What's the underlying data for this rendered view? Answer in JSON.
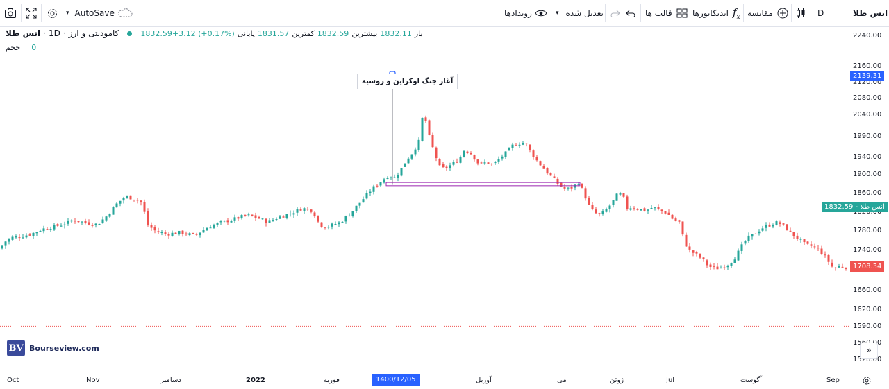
{
  "toolbar": {
    "autosave": "AutoSave",
    "events": "رویدادها",
    "adjusted": "تعدیل شده",
    "templates": "قالب ها",
    "indicators": "اندیکاتورها",
    "compare": "مقایسه",
    "interval": "D",
    "symbol": "انس طلا"
  },
  "legend": {
    "title": "انس طلا",
    "interval": "1D",
    "category": "کامودیتی و ارز",
    "open_label": "باز",
    "open": "1832.11",
    "high_label": "بیشترین",
    "high": "1832.59",
    "low_label": "کمترین",
    "low": "1831.57",
    "close_label": "پایانی",
    "close": "1832.59",
    "change": "+3.12 (+0.17%)",
    "volume_label": "حجم",
    "volume": "0"
  },
  "annotation": {
    "text": "آغاز جنگ اوکراین و روسیه"
  },
  "price_tags": {
    "marker": "2139.31",
    "current_label": "انس طلا",
    "current": "1832.59",
    "last": "1708.34"
  },
  "x_highlight": "1400/12/05",
  "logo": {
    "text": "Bourseview.com",
    "mark": "BV"
  },
  "colors": {
    "up": "#26a69a",
    "down": "#ef5350",
    "accent": "#2962ff",
    "rect": "#9c27b0"
  },
  "chart_data": {
    "type": "candlestick",
    "title": "انس طلا",
    "y_ticks": [
      "2240.00",
      "2160.00",
      "2120.00",
      "2080.00",
      "2040.00",
      "1990.00",
      "1940.00",
      "1900.00",
      "1860.00",
      "1820.00",
      "1780.00",
      "1740.00",
      "1700.00",
      "1660.00",
      "1620.00",
      "1590.00",
      "1560.00",
      "1528.00"
    ],
    "x_ticks": [
      "Oct",
      "Nov",
      "دسامبر",
      "2022",
      "فوریه",
      "آوریل",
      "می",
      "ژوئن",
      "Jul",
      "آگوست",
      "Sep"
    ],
    "ylim": [
      1528,
      2250
    ],
    "path": [
      [
        0,
        1745
      ],
      [
        8,
        1760
      ],
      [
        18,
        1768
      ],
      [
        30,
        1770
      ],
      [
        45,
        1775
      ],
      [
        60,
        1785
      ],
      [
        75,
        1790
      ],
      [
        90,
        1795
      ],
      [
        105,
        1805
      ],
      [
        120,
        1800
      ],
      [
        140,
        1795
      ],
      [
        155,
        1815
      ],
      [
        165,
        1835
      ],
      [
        180,
        1855
      ],
      [
        195,
        1850
      ],
      [
        205,
        1840
      ],
      [
        212,
        1795
      ],
      [
        225,
        1780
      ],
      [
        240,
        1775
      ],
      [
        260,
        1778
      ],
      [
        280,
        1772
      ],
      [
        300,
        1790
      ],
      [
        320,
        1800
      ],
      [
        340,
        1808
      ],
      [
        355,
        1815
      ],
      [
        370,
        1810
      ],
      [
        385,
        1800
      ],
      [
        400,
        1810
      ],
      [
        420,
        1820
      ],
      [
        435,
        1830
      ],
      [
        450,
        1825
      ],
      [
        460,
        1795
      ],
      [
        470,
        1790
      ],
      [
        490,
        1800
      ],
      [
        505,
        1820
      ],
      [
        520,
        1845
      ],
      [
        535,
        1870
      ],
      [
        550,
        1890
      ],
      [
        560,
        1900
      ],
      [
        568,
        1895
      ],
      [
        575,
        1908
      ],
      [
        585,
        1935
      ],
      [
        595,
        1955
      ],
      [
        603,
        1980
      ],
      [
        610,
        2055
      ],
      [
        615,
        2010
      ],
      [
        620,
        1980
      ],
      [
        627,
        1945
      ],
      [
        633,
        1920
      ],
      [
        640,
        1915
      ],
      [
        650,
        1925
      ],
      [
        660,
        1935
      ],
      [
        668,
        1958
      ],
      [
        676,
        1955
      ],
      [
        683,
        1940
      ],
      [
        690,
        1925
      ],
      [
        700,
        1930
      ],
      [
        710,
        1925
      ],
      [
        720,
        1940
      ],
      [
        730,
        1955
      ],
      [
        738,
        1970
      ],
      [
        748,
        1975
      ],
      [
        756,
        1978
      ],
      [
        762,
        1960
      ],
      [
        770,
        1940
      ],
      [
        778,
        1925
      ],
      [
        786,
        1910
      ],
      [
        795,
        1895
      ],
      [
        805,
        1880
      ],
      [
        815,
        1870
      ],
      [
        825,
        1875
      ],
      [
        833,
        1885
      ],
      [
        840,
        1865
      ],
      [
        848,
        1835
      ],
      [
        856,
        1820
      ],
      [
        865,
        1815
      ],
      [
        875,
        1830
      ],
      [
        883,
        1845
      ],
      [
        890,
        1862
      ],
      [
        897,
        1855
      ],
      [
        903,
        1830
      ],
      [
        910,
        1832
      ],
      [
        920,
        1828
      ],
      [
        930,
        1825
      ],
      [
        940,
        1832
      ],
      [
        950,
        1825
      ],
      [
        960,
        1820
      ],
      [
        970,
        1805
      ],
      [
        978,
        1800
      ],
      [
        985,
        1760
      ],
      [
        992,
        1742
      ],
      [
        1000,
        1735
      ],
      [
        1010,
        1725
      ],
      [
        1020,
        1710
      ],
      [
        1030,
        1705
      ],
      [
        1040,
        1708
      ],
      [
        1050,
        1715
      ],
      [
        1060,
        1730
      ],
      [
        1068,
        1750
      ],
      [
        1075,
        1765
      ],
      [
        1083,
        1772
      ],
      [
        1090,
        1780
      ],
      [
        1100,
        1790
      ],
      [
        1110,
        1795
      ],
      [
        1120,
        1800
      ],
      [
        1130,
        1790
      ],
      [
        1140,
        1775
      ],
      [
        1150,
        1765
      ],
      [
        1160,
        1752
      ],
      [
        1170,
        1750
      ],
      [
        1180,
        1742
      ],
      [
        1190,
        1725
      ],
      [
        1200,
        1705
      ],
      [
        1210,
        1710
      ],
      [
        1218,
        1708
      ]
    ]
  }
}
